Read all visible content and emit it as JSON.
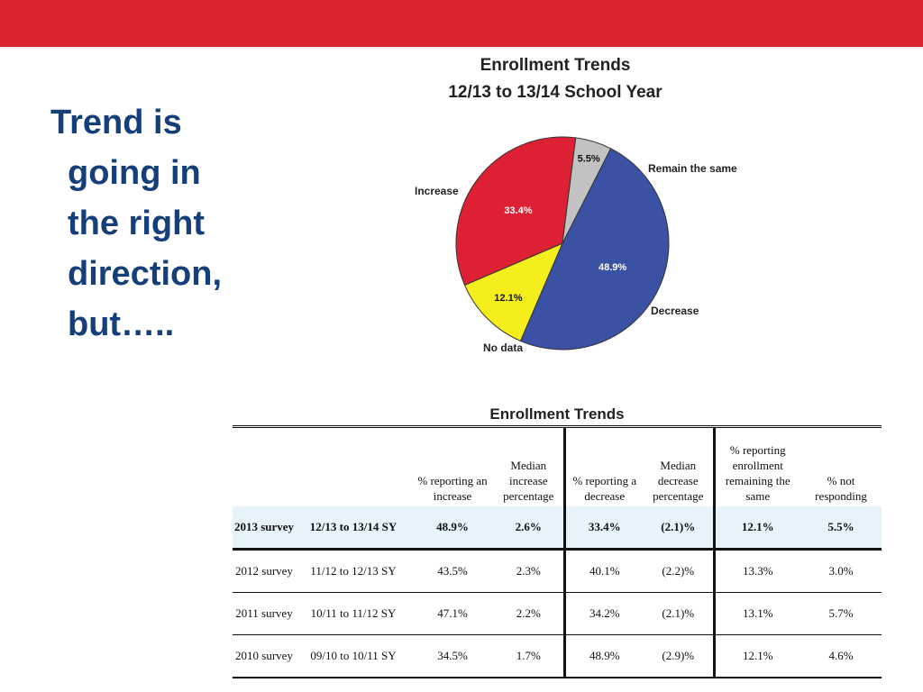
{
  "slide": {
    "bullet_lines": [
      "Trend is",
      "going in",
      "the right",
      "direction,",
      "but….."
    ],
    "accent_color": "#d9222e",
    "text_color": "#153f7a"
  },
  "chart_data": [
    {
      "type": "pie",
      "title": "Enrollment Trends",
      "subtitle": "12/13 to 13/14 School Year",
      "slices": [
        {
          "label": "Increase",
          "value": 48.9,
          "display": "48.9%",
          "color": "#3a51a4"
        },
        {
          "label": "Remain the same",
          "value": 12.1,
          "display": "12.1%",
          "color": "#f4ee1d"
        },
        {
          "label": "Decrease",
          "value": 33.4,
          "display": "33.4%",
          "color": "#de2034"
        },
        {
          "label": "No data",
          "value": 5.5,
          "display": "5.5%",
          "color": "#c2c2c2"
        }
      ]
    },
    {
      "type": "table",
      "title": "Enrollment Trends",
      "headers": [
        "",
        "",
        "% reporting an increase",
        "Median increase percentage",
        "% reporting a decrease",
        "Median decrease percentage",
        "% reporting enrollment remaining the same",
        "% not responding"
      ],
      "rows": [
        [
          "2013 survey",
          "12/13 to 13/14 SY",
          "48.9%",
          "2.6%",
          "33.4%",
          "(2.1)%",
          "12.1%",
          "5.5%"
        ],
        [
          "2012 survey",
          "11/12 to 12/13 SY",
          "43.5%",
          "2.3%",
          "40.1%",
          "(2.2)%",
          "13.3%",
          "3.0%"
        ],
        [
          "2011 survey",
          "10/11 to 11/12 SY",
          "47.1%",
          "2.2%",
          "34.2%",
          "(2.1)%",
          "13.1%",
          "5.7%"
        ],
        [
          "2010 survey",
          "09/10 to 10/11 SY",
          "34.5%",
          "1.7%",
          "48.9%",
          "(2.9)%",
          "12.1%",
          "4.6%"
        ]
      ]
    }
  ]
}
